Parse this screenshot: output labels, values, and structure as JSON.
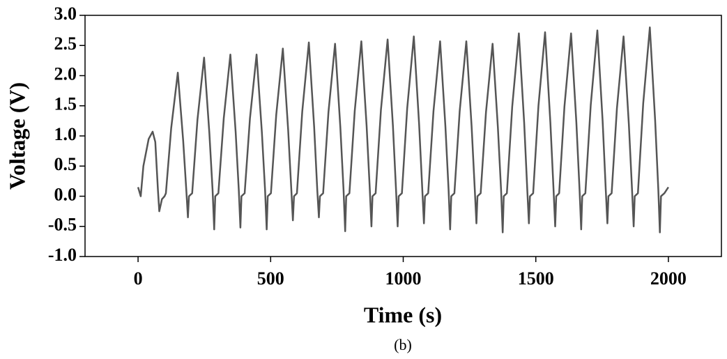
{
  "chart_data": {
    "type": "line",
    "x_label": "Time (s)",
    "y_label": "Voltage (V)",
    "caption": "(b)",
    "color": "#555555",
    "xlim": [
      -200,
      2200
    ],
    "xticks": [
      0,
      500,
      1000,
      1500,
      2000
    ],
    "ylim": [
      -1,
      3
    ],
    "yticks": [
      {
        "value": -1,
        "label": "-1.0"
      },
      {
        "value": -0.5,
        "label": "-0.5"
      },
      {
        "value": 0,
        "label": "0.0"
      },
      {
        "value": 0.5,
        "label": "0.5"
      },
      {
        "value": 1,
        "label": "1.0"
      },
      {
        "value": 1.5,
        "label": "1.5"
      },
      {
        "value": 2,
        "label": "2.0"
      },
      {
        "value": 2.5,
        "label": "2.5"
      },
      {
        "value": 3,
        "label": "3.0"
      }
    ],
    "x": [
      0,
      10,
      20,
      40,
      55,
      65,
      75,
      80,
      90,
      100,
      105,
      125,
      150,
      170,
      182,
      188,
      192,
      204,
      224,
      249,
      269,
      281,
      287,
      291,
      303,
      323,
      348,
      368,
      380,
      386,
      390,
      402,
      422,
      447,
      467,
      479,
      485,
      489,
      501,
      521,
      546,
      566,
      578,
      584,
      588,
      599,
      619,
      644,
      664,
      676,
      682,
      686,
      698,
      718,
      743,
      763,
      775,
      781,
      785,
      797,
      817,
      842,
      862,
      874,
      880,
      884,
      896,
      916,
      941,
      961,
      973,
      979,
      983,
      995,
      1015,
      1040,
      1060,
      1072,
      1078,
      1082,
      1094,
      1114,
      1139,
      1159,
      1171,
      1177,
      1181,
      1193,
      1213,
      1238,
      1258,
      1270,
      1276,
      1280,
      1292,
      1312,
      1337,
      1357,
      1369,
      1375,
      1379,
      1391,
      1411,
      1436,
      1456,
      1468,
      1474,
      1478,
      1490,
      1510,
      1535,
      1555,
      1567,
      1573,
      1577,
      1588,
      1608,
      1633,
      1653,
      1665,
      1671,
      1675,
      1687,
      1707,
      1732,
      1752,
      1764,
      1770,
      1774,
      1786,
      1806,
      1831,
      1851,
      1863,
      1869,
      1873,
      1885,
      1905,
      1930,
      1950,
      1962,
      1968,
      1972,
      1985,
      2000
    ],
    "values": [
      0.15,
      0,
      0.5,
      0.95,
      1.07,
      0.9,
      0.1,
      -0.25,
      -0.05,
      0,
      0.05,
      1.13,
      2.05,
      0.92,
      0.1,
      -0.35,
      0,
      0.05,
      1.27,
      2.3,
      1.04,
      0.1,
      -0.55,
      0,
      0.05,
      1.29,
      2.35,
      1.06,
      0.1,
      -0.52,
      0,
      0.05,
      1.29,
      2.35,
      1.06,
      0.1,
      -0.55,
      0,
      0.05,
      1.35,
      2.45,
      1.1,
      0.1,
      -0.4,
      0,
      0.05,
      1.4,
      2.55,
      1.15,
      0.1,
      -0.35,
      0,
      0.05,
      1.39,
      2.53,
      1.14,
      0.1,
      -0.58,
      0,
      0.05,
      1.41,
      2.57,
      1.16,
      0.1,
      -0.5,
      0,
      0.05,
      1.43,
      2.6,
      1.17,
      0.1,
      -0.5,
      0,
      0.05,
      1.46,
      2.65,
      1.19,
      0.1,
      -0.45,
      0,
      0.05,
      1.41,
      2.57,
      1.16,
      0.1,
      -0.55,
      0,
      0.05,
      1.41,
      2.57,
      1.16,
      0.1,
      -0.45,
      0,
      0.05,
      1.39,
      2.53,
      1.14,
      0.1,
      -0.6,
      0,
      0.05,
      1.49,
      2.7,
      1.22,
      0.1,
      -0.45,
      0,
      0.05,
      1.5,
      2.72,
      1.22,
      0.1,
      -0.5,
      0,
      0.05,
      1.49,
      2.7,
      1.22,
      0.1,
      -0.55,
      0,
      0.05,
      1.51,
      2.75,
      1.24,
      0.1,
      -0.45,
      0,
      0.05,
      1.46,
      2.65,
      1.19,
      0.1,
      -0.5,
      0,
      0.05,
      1.54,
      2.8,
      1.26,
      0.1,
      -0.6,
      0,
      0.05,
      0.15
    ]
  }
}
